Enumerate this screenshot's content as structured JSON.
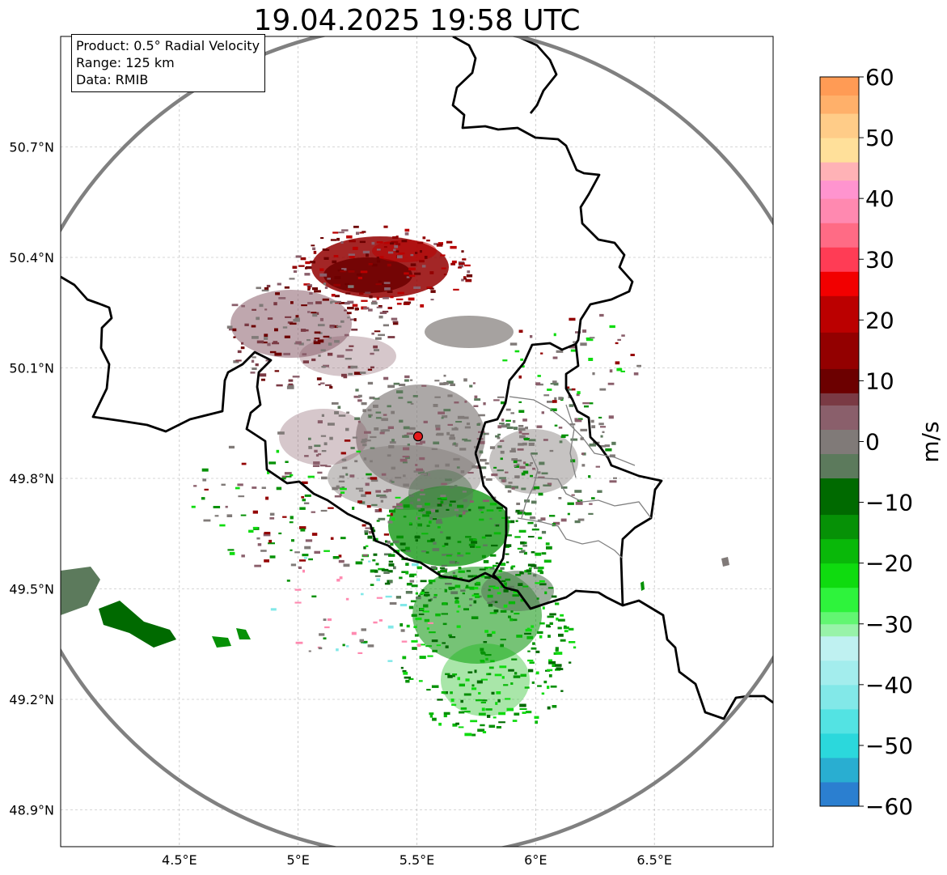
{
  "title": "19.04.2025 19:58 UTC",
  "info_box": {
    "product": "Product: 0.5° Radial Velocity",
    "range": "Range: 125 km",
    "data": "Data: RMIB"
  },
  "map": {
    "lon_range": [
      4.0,
      7.0
    ],
    "lat_range": [
      48.8,
      51.0
    ],
    "x_ticks": [
      {
        "value": 4.5,
        "label": "4.5°E"
      },
      {
        "value": 5.0,
        "label": "5°E"
      },
      {
        "value": 5.5,
        "label": "5.5°E"
      },
      {
        "value": 6.0,
        "label": "6°E"
      },
      {
        "value": 6.5,
        "label": "6.5°E"
      }
    ],
    "y_ticks": [
      {
        "value": 50.7,
        "label": "50.7°N"
      },
      {
        "value": 50.4,
        "label": "50.4°N"
      },
      {
        "value": 50.1,
        "label": "50.1°N"
      },
      {
        "value": 49.8,
        "label": "49.8°N"
      },
      {
        "value": 49.5,
        "label": "49.5°N"
      },
      {
        "value": 49.2,
        "label": "49.2°N"
      },
      {
        "value": 48.9,
        "label": "48.9°N"
      }
    ],
    "radar_site": {
      "lon": 5.505,
      "lat": 49.914
    },
    "grid": true
  },
  "colorbar": {
    "label": "m/s",
    "min": -60,
    "max": 60,
    "ticks": [
      {
        "value": 60,
        "label": "60"
      },
      {
        "value": 50,
        "label": "50"
      },
      {
        "value": 40,
        "label": "40"
      },
      {
        "value": 30,
        "label": "30"
      },
      {
        "value": 20,
        "label": "20"
      },
      {
        "value": 10,
        "label": "10"
      },
      {
        "value": 0,
        "label": "0"
      },
      {
        "value": -10,
        "label": "−10"
      },
      {
        "value": -20,
        "label": "−20"
      },
      {
        "value": -30,
        "label": "−30"
      },
      {
        "value": -40,
        "label": "−40"
      },
      {
        "value": -50,
        "label": "−50"
      },
      {
        "value": -60,
        "label": "−60"
      }
    ],
    "stops": [
      {
        "from": -60,
        "to": -56,
        "color": "#2b7fd0"
      },
      {
        "from": -56,
        "to": -52,
        "color": "#29aed1"
      },
      {
        "from": -52,
        "to": -48,
        "color": "#2bd8dc"
      },
      {
        "from": -48,
        "to": -44,
        "color": "#53e3e3"
      },
      {
        "from": -44,
        "to": -40,
        "color": "#82e8e8"
      },
      {
        "from": -40,
        "to": -36,
        "color": "#a3eded"
      },
      {
        "from": -36,
        "to": -32,
        "color": "#bff1f1"
      },
      {
        "from": -32,
        "to": -30,
        "color": "#98f3a9"
      },
      {
        "from": -30,
        "to": -28,
        "color": "#62f672"
      },
      {
        "from": -28,
        "to": -24,
        "color": "#2ef33c"
      },
      {
        "from": -24,
        "to": -20,
        "color": "#0fdb0f"
      },
      {
        "from": -20,
        "to": -16,
        "color": "#09b809"
      },
      {
        "from": -16,
        "to": -12,
        "color": "#069106"
      },
      {
        "from": -12,
        "to": -6,
        "color": "#006a00"
      },
      {
        "from": -6,
        "to": -2,
        "color": "#5c7a5c"
      },
      {
        "from": -2,
        "to": 2,
        "color": "#807a78"
      },
      {
        "from": 2,
        "to": 6,
        "color": "#8a5f6b"
      },
      {
        "from": 6,
        "to": 8,
        "color": "#7a3a44"
      },
      {
        "from": 8,
        "to": 12,
        "color": "#6c0000"
      },
      {
        "from": 12,
        "to": 18,
        "color": "#930000"
      },
      {
        "from": 18,
        "to": 24,
        "color": "#bb0000"
      },
      {
        "from": 24,
        "to": 28,
        "color": "#f20000"
      },
      {
        "from": 28,
        "to": 32,
        "color": "#ff3c55"
      },
      {
        "from": 32,
        "to": 36,
        "color": "#ff6b85"
      },
      {
        "from": 36,
        "to": 40,
        "color": "#ff89b0"
      },
      {
        "from": 40,
        "to": 43,
        "color": "#ff94cf"
      },
      {
        "from": 43,
        "to": 46,
        "color": "#ffb2b6"
      },
      {
        "from": 46,
        "to": 50,
        "color": "#ffe09a"
      },
      {
        "from": 50,
        "to": 54,
        "color": "#ffcc88"
      },
      {
        "from": 54,
        "to": 57,
        "color": "#ffb06a"
      },
      {
        "from": 57,
        "to": 60,
        "color": "#ff9b55"
      }
    ]
  }
}
